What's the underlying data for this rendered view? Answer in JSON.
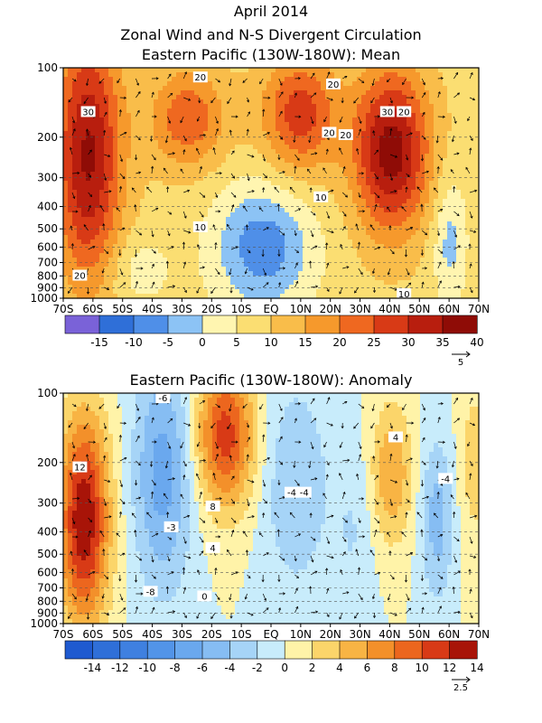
{
  "header": {
    "title_line1": "April 2014",
    "title_line2": "Zonal Wind and N-S Divergent Circulation",
    "mean_title": "Eastern Pacific (130W-180W): Mean",
    "anomaly_title": "Eastern Pacific (130W-180W): Anomaly"
  },
  "chart_data": [
    {
      "type": "heatmap",
      "title": "Eastern Pacific (130W-180W): Mean",
      "x": [
        "70S",
        "60S",
        "50S",
        "40S",
        "30S",
        "20S",
        "10S",
        "EQ",
        "10N",
        "20N",
        "30N",
        "40N",
        "50N",
        "60N",
        "70N"
      ],
      "y": [
        "100",
        "200",
        "300",
        "400",
        "500",
        "600",
        "700",
        "800",
        "900",
        "1000"
      ],
      "contour_labels": [
        "30",
        "20",
        "20",
        "20",
        "30",
        "20",
        "10",
        "10",
        "20",
        "20",
        "10"
      ],
      "colorbar": {
        "ticks": [
          "-15",
          "-10",
          "-5",
          "0",
          "5",
          "10",
          "15",
          "20",
          "25",
          "30",
          "35",
          "40"
        ],
        "colors": [
          "#7a62d8",
          "#2f6fd8",
          "#4f8fe8",
          "#8cc3f5",
          "#fff5b0",
          "#fbde72",
          "#f9bd4a",
          "#f6992c",
          "#ef6820",
          "#d83a16",
          "#b81e0e",
          "#8f0c06"
        ]
      },
      "vector_reference": "5"
    },
    {
      "type": "heatmap",
      "title": "Eastern Pacific (130W-180W): Anomaly",
      "x": [
        "70S",
        "60S",
        "50S",
        "40S",
        "30S",
        "20S",
        "10S",
        "EQ",
        "10N",
        "20N",
        "30N",
        "40N",
        "50N",
        "60N",
        "70N"
      ],
      "y": [
        "100",
        "200",
        "300",
        "400",
        "500",
        "600",
        "700",
        "800",
        "900",
        "1000"
      ],
      "contour_labels": [
        "-6",
        "12",
        "-3",
        "8",
        "4",
        "-4",
        "0",
        "-8",
        "-4",
        "4",
        "-4"
      ],
      "colorbar": {
        "ticks": [
          "-14",
          "-12",
          "-10",
          "-8",
          "-6",
          "-4",
          "-2",
          "0",
          "2",
          "4",
          "6",
          "8",
          "10",
          "12",
          "14"
        ],
        "colors": [
          "#1f5ad0",
          "#2f6fd8",
          "#3f80e0",
          "#5294e8",
          "#6aa8ee",
          "#86bdf3",
          "#a6d4f7",
          "#c8ecfb",
          "#fff3a8",
          "#fbd56a",
          "#f8b444",
          "#f3902a",
          "#ec661e",
          "#d83a16",
          "#a81408"
        ]
      },
      "vector_reference": "2.5"
    }
  ]
}
